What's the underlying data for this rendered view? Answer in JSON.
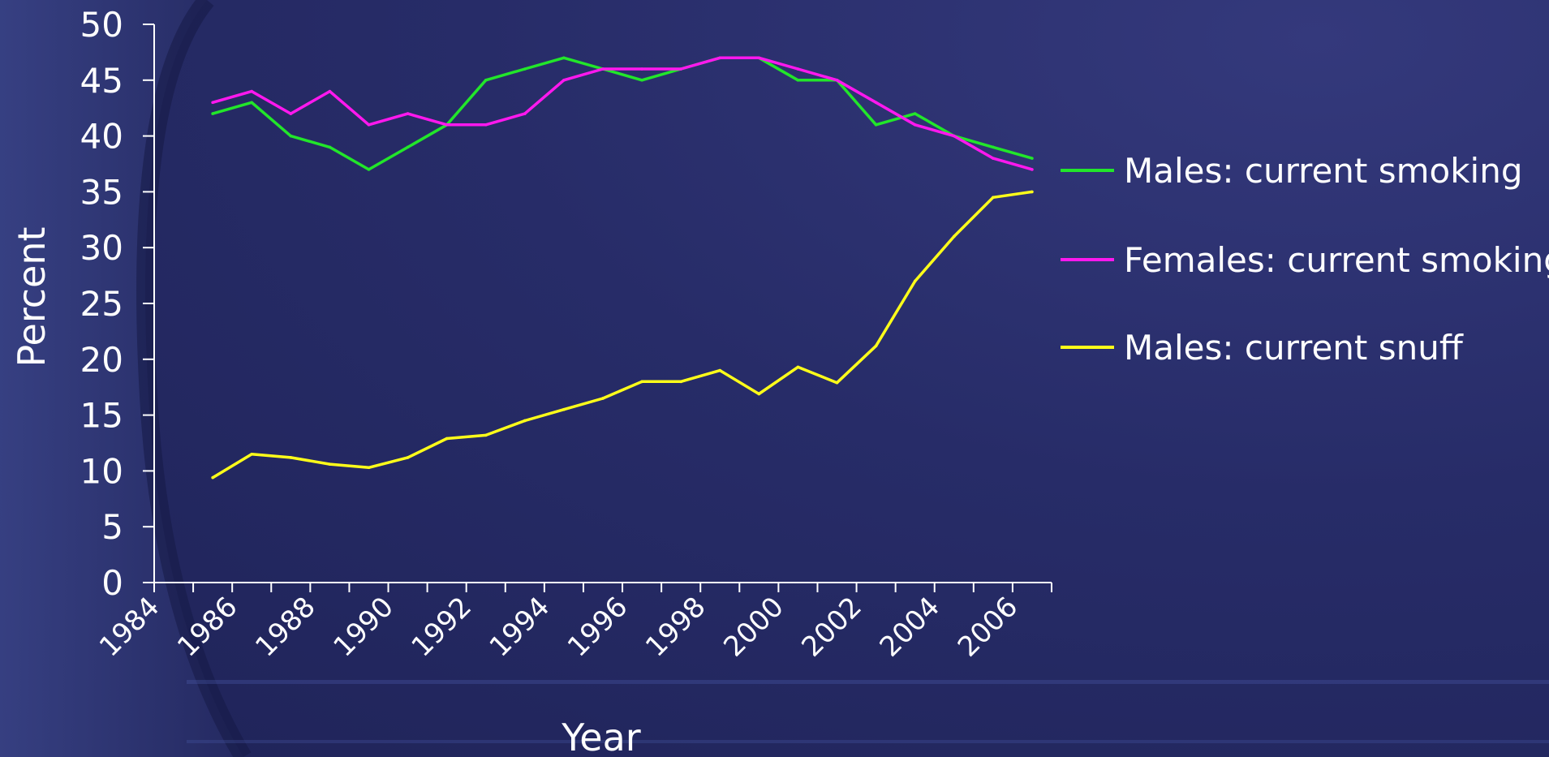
{
  "chart_data": {
    "type": "line",
    "xlabel": "Year",
    "ylabel": "Percent",
    "ylim": [
      0,
      50
    ],
    "yticks": [
      0,
      5,
      10,
      15,
      20,
      25,
      30,
      35,
      40,
      45,
      50
    ],
    "xlim": [
      1984,
      2007
    ],
    "xtick_labels": [
      "1984",
      "1986",
      "1988",
      "1990",
      "1992",
      "1994",
      "1996",
      "1998",
      "2000",
      "2002",
      "2004",
      "2006"
    ],
    "grid": false,
    "legend_position": "right",
    "x": [
      1985.5,
      1986.5,
      1987.5,
      1988.5,
      1989.5,
      1990.5,
      1991.5,
      1992.5,
      1993.5,
      1994.5,
      1995.5,
      1996.5,
      1997.5,
      1998.5,
      1999.5,
      2000.5,
      2001.5,
      2002.5,
      2003.5,
      2004.5,
      2005.5,
      2006.5
    ],
    "series": [
      {
        "name": "Males: current smoking",
        "color": "#22e62a",
        "values": [
          42,
          43,
          40,
          39,
          37,
          39,
          41,
          45,
          46,
          47,
          46,
          45,
          46,
          47,
          47,
          45,
          45,
          41,
          42,
          40,
          39,
          38
        ]
      },
      {
        "name": "Females: current smoking",
        "color": "#ff18ee",
        "values": [
          43,
          44,
          42,
          44,
          41,
          42,
          41,
          41,
          42,
          45,
          46,
          46,
          46,
          47,
          47,
          46,
          45,
          43,
          41,
          40,
          38,
          37
        ]
      },
      {
        "name": "Males: current snuff",
        "color": "#ffff1a",
        "values": [
          9.4,
          11.5,
          11.2,
          10.6,
          10.3,
          11.2,
          12.9,
          13.2,
          14.5,
          15.5,
          16.5,
          18,
          18,
          19,
          16.9,
          19.3,
          17.9,
          21.2,
          27,
          31,
          34.5,
          35
        ]
      }
    ]
  }
}
